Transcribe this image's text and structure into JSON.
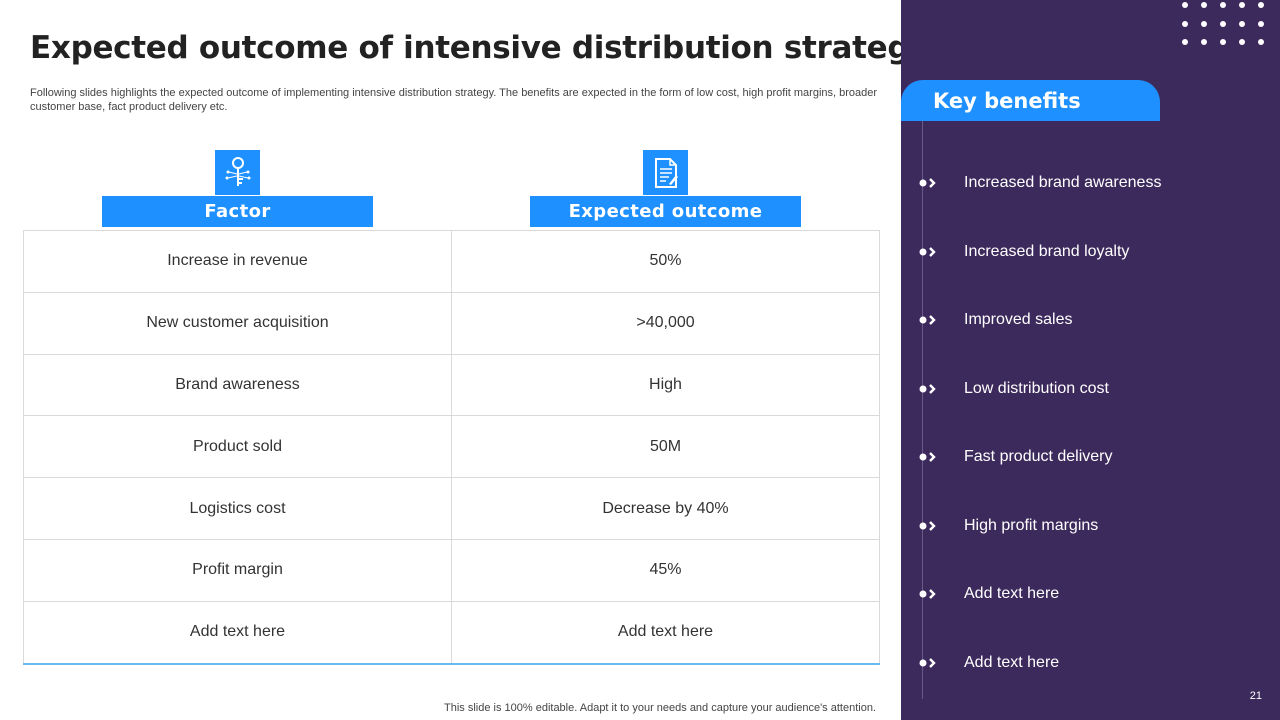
{
  "header": {
    "title": "Expected outcome of intensive distribution strategy",
    "subtitle": "Following slides highlights the expected outcome of implementing intensive distribution strategy. The benefits are expected in the form of low cost, high profit margins, broader customer base, fact product delivery etc."
  },
  "table": {
    "headers": [
      "Factor",
      "Expected outcome"
    ],
    "icons": [
      "key-circuit-icon",
      "document-icon"
    ],
    "rows": [
      [
        "Increase  in revenue",
        "50%"
      ],
      [
        "New customer acquisition",
        ">40,000"
      ],
      [
        "Brand awareness",
        "High"
      ],
      [
        "Product sold",
        "50M"
      ],
      [
        "Logistics cost",
        "Decrease by 40%"
      ],
      [
        "Profit margin",
        "45%"
      ],
      [
        "Add text here",
        "Add text here"
      ]
    ]
  },
  "benefits": {
    "title": "Key benefits",
    "items": [
      "Increased brand awareness",
      "Increased brand loyalty",
      "Improved sales",
      "Low distribution cost",
      "Fast product delivery",
      "High profit margins",
      "Add text here",
      "Add text here"
    ]
  },
  "footer": {
    "note": "This slide is 100% editable. Adapt it to your needs and capture your audience's attention.",
    "page_number": "21"
  },
  "colors": {
    "accent": "#1e90ff",
    "panel": "#3d2a5c"
  }
}
